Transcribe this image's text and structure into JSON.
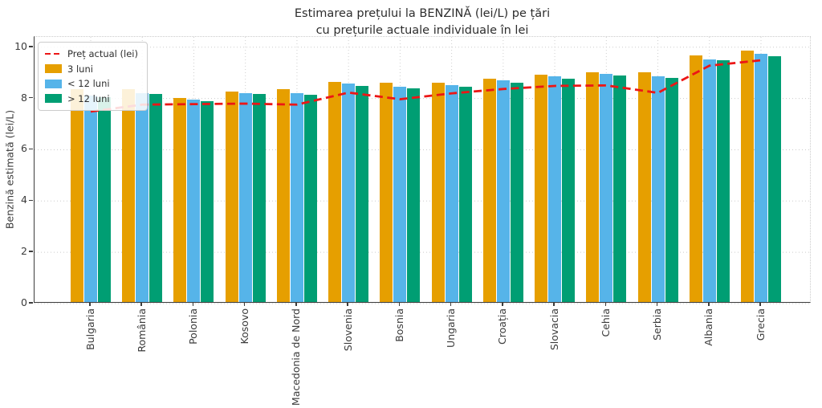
{
  "title": {
    "line1": "Estimarea prețului la BENZINĂ (lei/L) pe țări",
    "line2": "cu prețurile actuale individuale în lei"
  },
  "chart_data": {
    "type": "bar",
    "title": "Estimarea prețului la BENZINĂ (lei/L) pe țări cu prețurile actuale individuale în lei",
    "xlabel": "",
    "ylabel": "Benzină estimată (lei/L)",
    "ylim": [
      0,
      10.4
    ],
    "yticks": [
      0,
      2,
      4,
      6,
      8,
      10
    ],
    "grid": true,
    "legend_position": "upper left",
    "categories": [
      "Bulgaria",
      "România",
      "Polonia",
      "Kosovo",
      "Macedonia de Nord",
      "Slovenia",
      "Bosnia",
      "Ungaria",
      "Croația",
      "Slovacia",
      "Cehia",
      "Serbia",
      "Albania",
      "Grecia"
    ],
    "series": [
      {
        "name": "3 luni",
        "color": "#E69F00",
        "values": [
          8.3,
          8.3,
          7.97,
          8.22,
          8.3,
          8.59,
          8.56,
          8.55,
          8.72,
          8.88,
          8.95,
          8.95,
          9.63,
          9.79
        ]
      },
      {
        "name": "< 12 luni",
        "color": "#56B4E9",
        "values": [
          8.04,
          8.14,
          7.89,
          8.15,
          8.13,
          8.51,
          8.41,
          8.47,
          8.64,
          8.79,
          8.9,
          8.79,
          9.47,
          9.68
        ]
      },
      {
        "name": "> 12 luni",
        "color": "#009E73",
        "values": [
          8.0,
          8.1,
          7.82,
          8.11,
          8.09,
          8.43,
          8.34,
          8.4,
          8.56,
          8.7,
          8.83,
          8.75,
          9.42,
          9.59
        ]
      }
    ],
    "line_series": {
      "name": "Preț actual (lei)",
      "color": "#ec1616",
      "style": "dashed",
      "values": [
        7.49,
        7.76,
        7.78,
        7.8,
        7.76,
        8.23,
        7.97,
        8.2,
        8.37,
        8.49,
        8.51,
        8.22,
        9.28,
        9.49
      ]
    }
  }
}
